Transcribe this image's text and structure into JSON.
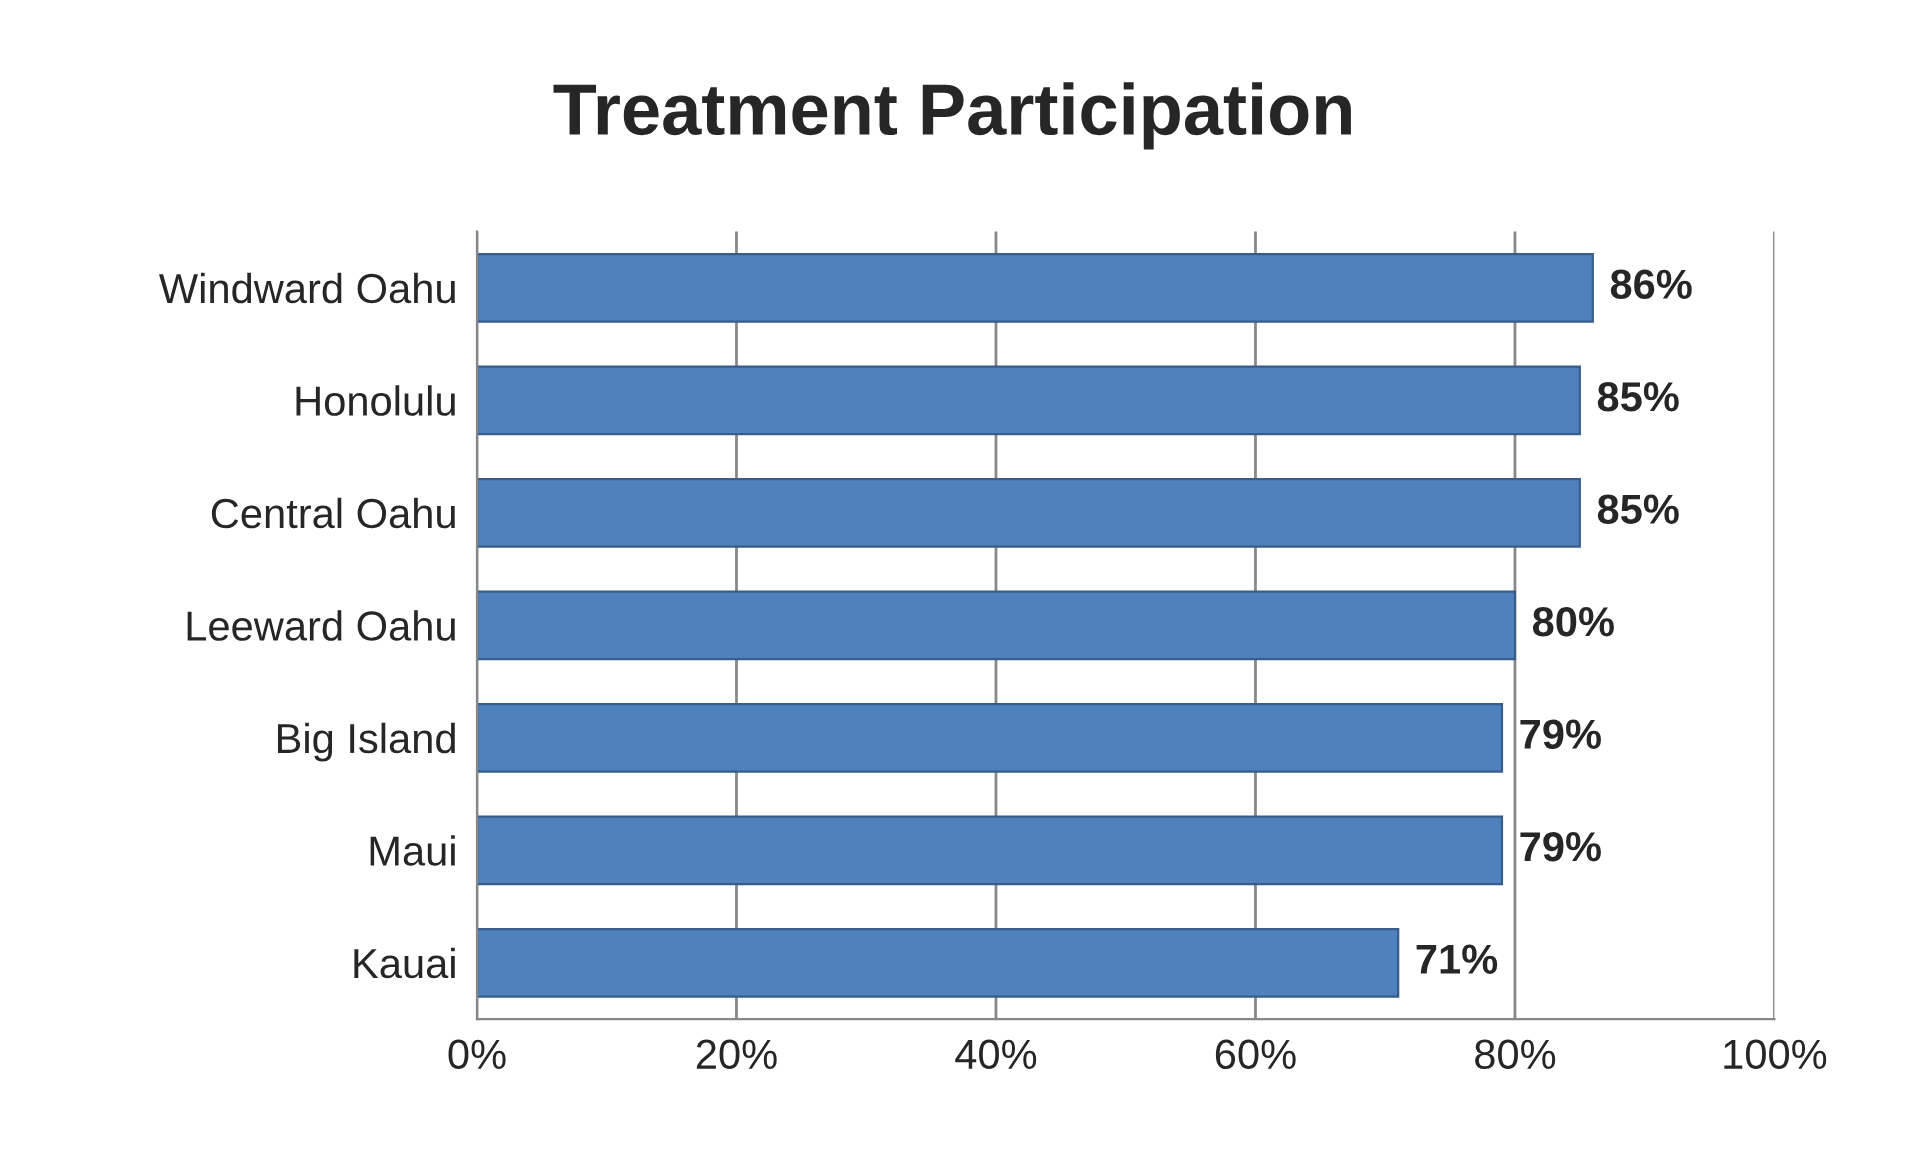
{
  "chart_data": {
    "type": "bar",
    "orientation": "horizontal",
    "title": "Treatment Participation",
    "categories": [
      "Windward Oahu",
      "Honolulu",
      "Central Oahu",
      "Leeward Oahu",
      "Big Island",
      "Maui",
      "Kauai"
    ],
    "values": [
      86,
      85,
      85,
      80,
      79,
      79,
      71
    ],
    "value_labels": [
      "86%",
      "85%",
      "85%",
      "80%",
      "79%",
      "79%",
      "71%"
    ],
    "color": "#4f81bd",
    "xlim": [
      0,
      100
    ],
    "xticks": [
      {
        "value": 0,
        "label": "0%"
      },
      {
        "value": 20,
        "label": "20%"
      },
      {
        "value": 40,
        "label": "40%"
      },
      {
        "value": 60,
        "label": "60%"
      },
      {
        "value": 80,
        "label": "80%"
      },
      {
        "value": 100,
        "label": "100%"
      }
    ],
    "grid": "x",
    "legend": false
  }
}
